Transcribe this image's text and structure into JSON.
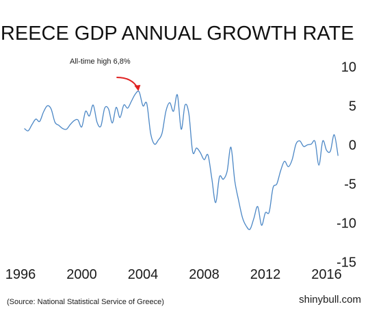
{
  "chart_data": {
    "type": "line",
    "title": "GREECE GDP ANNUAL GROWTH RATE",
    "xlabel": "",
    "ylabel": "",
    "xlim": [
      1996,
      2017
    ],
    "ylim": [
      -15,
      10
    ],
    "x_ticks": [
      "1996",
      "2000",
      "2004",
      "2008",
      "2012",
      "2016"
    ],
    "y_ticks": [
      "10",
      "5",
      "0",
      "-5",
      "-10",
      "-15"
    ],
    "grid": false,
    "legend": "none",
    "line_color": "#4a86c5",
    "annotation": {
      "text": "All-time high 6,8%",
      "x": 2003.75,
      "y": 6.8,
      "arrow_color": "#e02020"
    },
    "source": "(Source: National Statistical Service of Greece)",
    "brand": "shinybull.com",
    "series": [
      {
        "x": [
          1996.25,
          1996.5,
          1996.75,
          1997.0,
          1997.25,
          1997.5,
          1997.75,
          1998.0,
          1998.25,
          1998.5,
          1998.75,
          1999.0,
          1999.25,
          1999.5,
          1999.75,
          2000.0,
          2000.25,
          2000.5,
          2000.75,
          2001.0,
          2001.25,
          2001.5,
          2001.75,
          2002.0,
          2002.25,
          2002.5,
          2002.75,
          2003.0,
          2003.25,
          2003.5,
          2003.75,
          2004.0,
          2004.25,
          2004.5,
          2004.75,
          2005.0,
          2005.25,
          2005.5,
          2005.75,
          2006.0,
          2006.25,
          2006.5,
          2006.75,
          2007.0,
          2007.25,
          2007.5,
          2007.75,
          2008.0,
          2008.25,
          2008.5,
          2008.75,
          2009.0,
          2009.25,
          2009.5,
          2009.75,
          2010.0,
          2010.25,
          2010.5,
          2010.75,
          2011.0,
          2011.25,
          2011.5,
          2011.75,
          2012.0,
          2012.25,
          2012.5,
          2012.75,
          2013.0,
          2013.25,
          2013.5,
          2013.75,
          2014.0,
          2014.25,
          2014.5,
          2014.75,
          2015.0,
          2015.25,
          2015.5,
          2015.75,
          2016.0,
          2016.25,
          2016.5,
          2016.75
        ],
        "values": [
          2.1,
          1.8,
          2.6,
          3.3,
          3.0,
          4.2,
          5.0,
          4.6,
          2.9,
          2.5,
          2.1,
          2.0,
          2.6,
          3.1,
          3.2,
          2.3,
          4.3,
          3.7,
          5.1,
          2.9,
          2.4,
          4.7,
          4.6,
          2.8,
          4.8,
          3.5,
          5.1,
          4.7,
          5.6,
          6.5,
          6.8,
          5.0,
          5.3,
          1.5,
          0.1,
          0.6,
          1.5,
          4.3,
          5.4,
          4.3,
          6.4,
          2.0,
          5.1,
          4.0,
          -0.9,
          -0.4,
          -1.0,
          -1.9,
          -1.3,
          -4.3,
          -7.4,
          -4.1,
          -4.4,
          -3.4,
          -0.3,
          -4.6,
          -7.1,
          -9.3,
          -10.4,
          -10.8,
          -9.4,
          -7.9,
          -10.3,
          -8.7,
          -8.6,
          -5.5,
          -5.0,
          -3.3,
          -2.1,
          -2.8,
          -1.9,
          0.1,
          0.5,
          -0.2,
          0.0,
          0.1,
          0.4,
          -2.6,
          0.5,
          -0.7,
          -0.8,
          1.3,
          -1.4
        ]
      }
    ]
  }
}
